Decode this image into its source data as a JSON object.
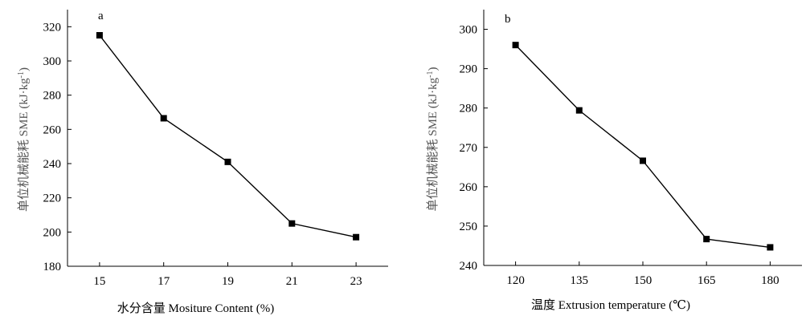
{
  "chart_data": [
    {
      "type": "line",
      "panel_label": "a",
      "xlabel": "水分含量 Mositure Content (%)",
      "ylabel_main": "单位机械能耗 SME (kJ·kg",
      "ylabel_sup": "-1",
      "ylabel_close": ")",
      "x": [
        15,
        17,
        19,
        21,
        23
      ],
      "x_tick_labels": [
        "15",
        "17",
        "19",
        "21",
        "23"
      ],
      "xlim": [
        14,
        24
      ],
      "ylim": [
        180,
        330
      ],
      "y_ticks": [
        180,
        200,
        220,
        240,
        260,
        280,
        300,
        320
      ],
      "y_tick_labels": [
        "180",
        "200",
        "220",
        "240",
        "260",
        "280",
        "300",
        "320"
      ],
      "series": [
        {
          "values": [
            315,
            266.5,
            241,
            205,
            197
          ]
        }
      ],
      "marker": "square",
      "grid": false
    },
    {
      "type": "line",
      "panel_label": "b",
      "xlabel": "温度 Extrusion temperature (℃)",
      "ylabel_main": "单位机械能耗 SME (kJ·kg",
      "ylabel_sup": "-1",
      "ylabel_close": ")",
      "x": [
        120,
        135,
        150,
        165,
        180
      ],
      "x_tick_labels": [
        "120",
        "135",
        "150",
        "165",
        "180"
      ],
      "xlim": [
        112.5,
        187.5
      ],
      "ylim": [
        240,
        305
      ],
      "y_ticks": [
        240,
        250,
        260,
        270,
        280,
        290,
        300
      ],
      "y_tick_labels": [
        "240",
        "250",
        "260",
        "270",
        "280",
        "290",
        "300"
      ],
      "series": [
        {
          "values": [
            296,
            279.4,
            266.6,
            246.7,
            244.6
          ]
        }
      ],
      "marker": "square",
      "grid": false
    }
  ]
}
